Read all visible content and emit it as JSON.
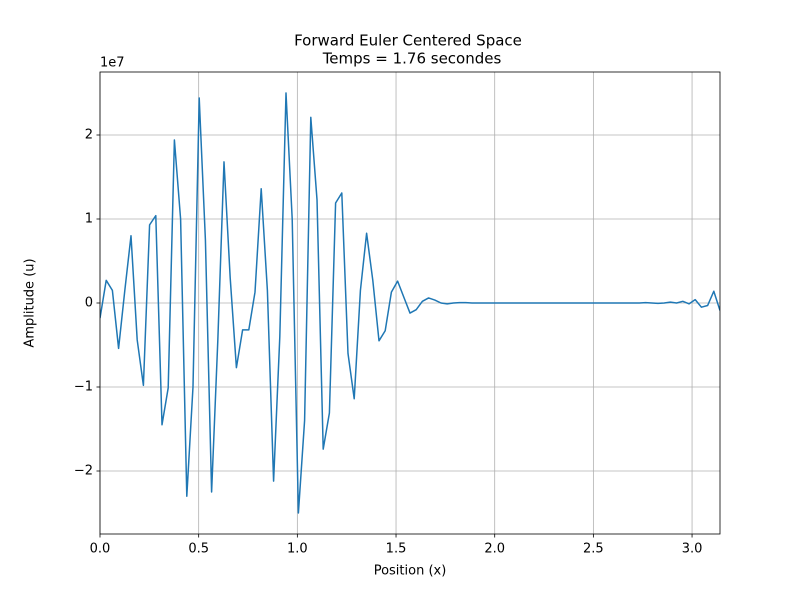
{
  "chart_data": {
    "type": "line",
    "title": "Forward Euler Centered Space",
    "subtitle": "Temps = 1.76 secondes",
    "x_label": "Position (x)",
    "y_label": "Amplitude (u)",
    "y_offset_label": "1e7",
    "grid": true,
    "xlim": [
      0,
      3.1416
    ],
    "ylim": [
      -2.75,
      2.75
    ],
    "xticks": [
      {
        "value": 0,
        "label": "0.0"
      },
      0.5,
      {
        "value": 1,
        "label": "1.0"
      },
      1.5,
      {
        "value": 2,
        "label": "2.0"
      },
      2.5,
      {
        "value": 3,
        "label": "3.0"
      }
    ],
    "yticks": [
      {
        "value": -2,
        "label": "−2"
      },
      {
        "value": -1,
        "label": "−1"
      },
      0,
      1,
      2
    ],
    "x": [
      0,
      0.0314,
      0.0628,
      0.0942,
      0.1257,
      0.1571,
      0.1885,
      0.2199,
      0.2513,
      0.2827,
      0.3142,
      0.3456,
      0.377,
      0.4084,
      0.4398,
      0.4712,
      0.5027,
      0.5341,
      0.5655,
      0.5969,
      0.6283,
      0.6597,
      0.6912,
      0.7226,
      0.754,
      0.7854,
      0.8168,
      0.8482,
      0.8796,
      0.9111,
      0.9425,
      0.9739,
      1.0053,
      1.0367,
      1.0681,
      1.0996,
      1.131,
      1.1624,
      1.1938,
      1.2252,
      1.2566,
      1.2881,
      1.3195,
      1.3509,
      1.3823,
      1.4137,
      1.4451,
      1.4765,
      1.508,
      1.5394,
      1.5708,
      1.6022,
      1.6336,
      1.665,
      1.6965,
      1.7279,
      1.7593,
      1.7907,
      1.8221,
      1.8535,
      1.885,
      1.9164,
      1.9478,
      1.9792,
      2.0106,
      2.042,
      2.0735,
      2.1049,
      2.1363,
      2.1677,
      2.1991,
      2.2305,
      2.2619,
      2.2934,
      2.3248,
      2.3562,
      2.3876,
      2.419,
      2.4504,
      2.4819,
      2.5133,
      2.5447,
      2.5761,
      2.6075,
      2.6389,
      2.6704,
      2.7018,
      2.7332,
      2.7646,
      2.796,
      2.8274,
      2.8588,
      2.8903,
      2.9217,
      2.9531,
      2.9845,
      3.0159,
      3.0473,
      3.0788,
      3.1102,
      3.1416
    ],
    "series": [
      {
        "color": "#1f77b4",
        "values": [
          -0.18,
          0.27,
          0.15,
          -0.54,
          0.15,
          0.8,
          -0.44,
          -0.98,
          0.93,
          1.04,
          -1.45,
          -1.01,
          1.94,
          1.0,
          -2.3,
          -1.0,
          2.44,
          0.75,
          -2.25,
          -0.45,
          1.68,
          0.3,
          -0.77,
          -0.32,
          -0.32,
          0.13,
          1.36,
          0.15,
          -2.12,
          -0.4,
          2.5,
          1.0,
          -2.5,
          -1.4,
          2.21,
          1.23,
          -1.74,
          -1.31,
          1.19,
          1.31,
          -0.6,
          -1.14,
          0.15,
          0.83,
          0.27,
          -0.45,
          -0.33,
          0.13,
          0.26,
          0.07,
          -0.12,
          -0.08,
          0.02,
          0.06,
          0.035,
          0.0,
          -0.01,
          0.0,
          0.005,
          0.005,
          0,
          0,
          0,
          0,
          0,
          0,
          0,
          0,
          0,
          0,
          0,
          0,
          0,
          0,
          0,
          0,
          0,
          0,
          0,
          0,
          0,
          0,
          0,
          0,
          0,
          0,
          0,
          0,
          0.005,
          0.0,
          -0.005,
          0.0,
          0.01,
          0.0,
          0.02,
          -0.01,
          0.04,
          -0.05,
          -0.03,
          0.14,
          -0.09
        ]
      }
    ]
  }
}
